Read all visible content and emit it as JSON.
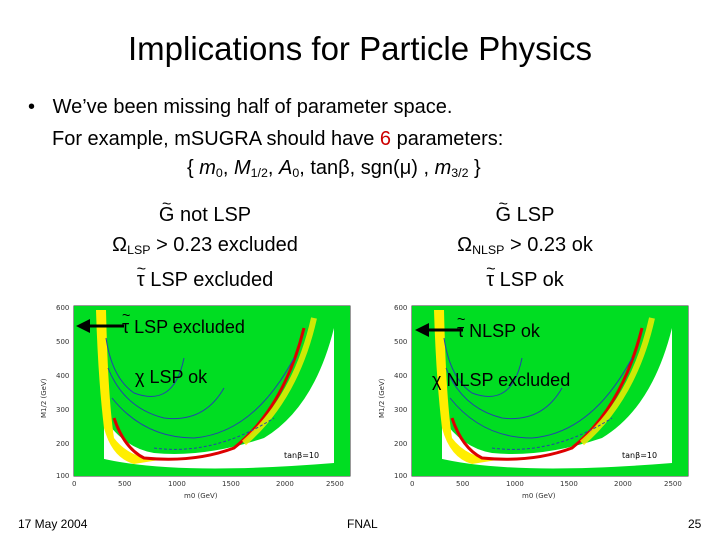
{
  "slide": {
    "title": "Implications for Particle Physics",
    "bullet_symbol": "•",
    "bullet_line1": "We’ve been missing half of parameter space.",
    "bullet_line2_pre": "For example, mSUGRA should have ",
    "bullet_line2_num": "6",
    "bullet_line2_post": " parameters:",
    "params": {
      "open": "{ ",
      "m0": "m",
      "m0_sub": "0",
      "sep1": ", ",
      "M12": "M",
      "M12_sub": "1/2",
      "sep2": ", ",
      "A0": "A",
      "A0_sub": "0",
      "sep3": ", tan",
      "beta": "β",
      "sep4": ", sgn(",
      "mu": "μ",
      "sep5": ") , ",
      "m32": "m",
      "m32_sub": "3/2",
      "close": " }"
    }
  },
  "left": {
    "g_symbol": "G",
    "line1_rest": " not LSP",
    "omega": "Ω",
    "omega_sub": "LSP",
    "line2_rest": " > 0.23 excluded",
    "tau": "τ",
    "line3_rest": " LSP excluded",
    "arrow_tau": "τ",
    "arrow_text": " LSP excluded",
    "chi": "χ",
    "chi_text": " LSP ok"
  },
  "right": {
    "g_symbol": "G",
    "line1_rest": " LSP",
    "omega": "Ω",
    "omega_sub": "NLSP",
    "line2_rest": " > 0.23 ok",
    "tau": "τ",
    "line3_rest": " LSP ok",
    "arrow_tau": "τ",
    "arrow_text": " NLSP ok",
    "chi": "χ",
    "chi_text": " NLSP excluded"
  },
  "plot": {
    "y_ticks": [
      "600",
      "500",
      "400",
      "300",
      "200",
      "100"
    ],
    "x_ticks": [
      "0",
      "500",
      "1000",
      "1500",
      "2000",
      "2500"
    ],
    "y_label": "M1/2 (GeV)",
    "x_label": "m0 (GeV)",
    "tanbeta_label": "tanβ=10",
    "colors": {
      "green": "#00dd22",
      "yellow": "#ffee00",
      "red": "#dd0000",
      "blue": "#2244aa"
    }
  },
  "footer": {
    "date": "17 May 2004",
    "venue": "FNAL",
    "page": "25"
  }
}
